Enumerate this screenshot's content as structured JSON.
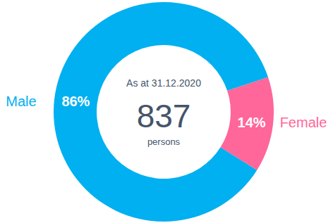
{
  "chart_data": {
    "type": "donut",
    "subtitle": "As at 31.12.2020",
    "center_value": 837,
    "center_label": "persons",
    "categories": [
      "Male",
      "Female"
    ],
    "values": [
      86,
      14
    ],
    "value_labels": [
      "86%",
      "14%"
    ],
    "colors": [
      "#00b0f0",
      "#ff6699"
    ],
    "data_labels": true
  }
}
